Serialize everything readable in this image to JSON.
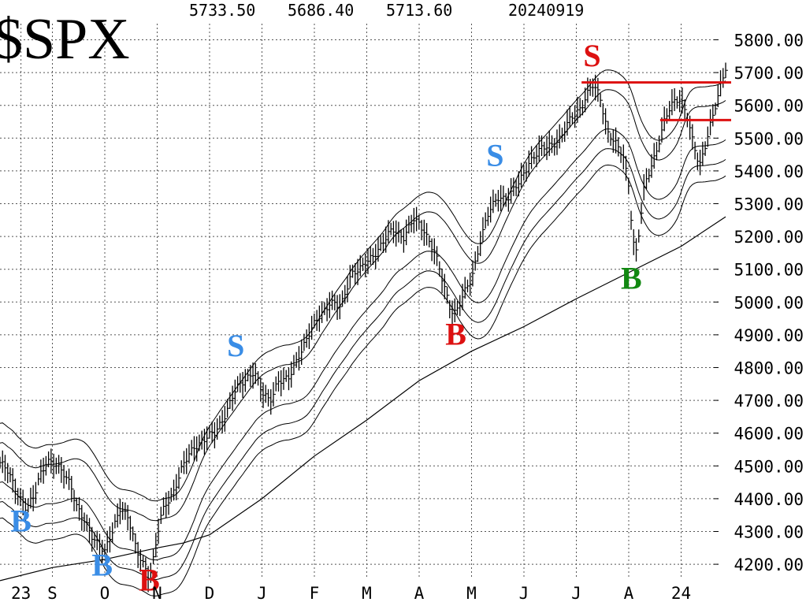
{
  "chart_data": {
    "type": "bar",
    "symbol": "$SPX",
    "header": {
      "high": "5733.50",
      "low": "5686.40",
      "close": "5713.60",
      "date": "20240919"
    },
    "y_ticks": [
      {
        "value": 5800,
        "label": "5800.00"
      },
      {
        "value": 5700,
        "label": "5700.00"
      },
      {
        "value": 5600,
        "label": "5600.00"
      },
      {
        "value": 5500,
        "label": "5500.00"
      },
      {
        "value": 5400,
        "label": "5400.00"
      },
      {
        "value": 5300,
        "label": "5300.00"
      },
      {
        "value": 5200,
        "label": "5200.00"
      },
      {
        "value": 5100,
        "label": "5100.00"
      },
      {
        "value": 5000,
        "label": "5000.00"
      },
      {
        "value": 4900,
        "label": "4900.00"
      },
      {
        "value": 4800,
        "label": "4800.00"
      },
      {
        "value": 4700,
        "label": "4700.00"
      },
      {
        "value": 4600,
        "label": "4600.00"
      },
      {
        "value": 4500,
        "label": "4500.00"
      },
      {
        "value": 4400,
        "label": "4400.00"
      },
      {
        "value": 4300,
        "label": "4300.00"
      },
      {
        "value": 4200,
        "label": "4200.00"
      }
    ],
    "ylim": [
      4170,
      5850
    ],
    "x_ticks": [
      {
        "t": 0.4,
        "label": "23"
      },
      {
        "t": 1.0,
        "label": "S"
      },
      {
        "t": 2.0,
        "label": "O"
      },
      {
        "t": 3.0,
        "label": "N"
      },
      {
        "t": 4.0,
        "label": "D"
      },
      {
        "t": 5.0,
        "label": "J"
      },
      {
        "t": 6.0,
        "label": "F"
      },
      {
        "t": 7.0,
        "label": "M"
      },
      {
        "t": 8.0,
        "label": "A"
      },
      {
        "t": 9.0,
        "label": "M"
      },
      {
        "t": 10.0,
        "label": "J"
      },
      {
        "t": 11.0,
        "label": "J"
      },
      {
        "t": 12.0,
        "label": "A"
      },
      {
        "t": 13.0,
        "label": "24"
      }
    ],
    "grid": true,
    "price_series": [
      [
        0,
        4510
      ],
      [
        0.15,
        4480
      ],
      [
        0.3,
        4430
      ],
      [
        0.5,
        4370
      ],
      [
        0.65,
        4400
      ],
      [
        0.75,
        4470
      ],
      [
        0.9,
        4520
      ],
      [
        1.05,
        4500
      ],
      [
        1.2,
        4480
      ],
      [
        1.35,
        4450
      ],
      [
        1.45,
        4380
      ],
      [
        1.6,
        4330
      ],
      [
        1.75,
        4290
      ],
      [
        1.9,
        4260
      ],
      [
        2.0,
        4235
      ],
      [
        2.15,
        4300
      ],
      [
        2.3,
        4380
      ],
      [
        2.45,
        4340
      ],
      [
        2.6,
        4240
      ],
      [
        2.75,
        4200
      ],
      [
        2.85,
        4160
      ],
      [
        2.95,
        4230
      ],
      [
        3.05,
        4330
      ],
      [
        3.15,
        4380
      ],
      [
        3.3,
        4420
      ],
      [
        3.5,
        4500
      ],
      [
        3.7,
        4560
      ],
      [
        3.9,
        4580
      ],
      [
        4.1,
        4600
      ],
      [
        4.3,
        4660
      ],
      [
        4.5,
        4730
      ],
      [
        4.7,
        4770
      ],
      [
        4.85,
        4790
      ],
      [
        5.0,
        4720
      ],
      [
        5.15,
        4700
      ],
      [
        5.3,
        4760
      ],
      [
        5.5,
        4760
      ],
      [
        5.7,
        4840
      ],
      [
        5.9,
        4900
      ],
      [
        6.1,
        4960
      ],
      [
        6.3,
        5000
      ],
      [
        6.5,
        4980
      ],
      [
        6.7,
        5090
      ],
      [
        6.9,
        5100
      ],
      [
        7.1,
        5140
      ],
      [
        7.3,
        5180
      ],
      [
        7.5,
        5220
      ],
      [
        7.7,
        5200
      ],
      [
        7.9,
        5250
      ],
      [
        8.1,
        5220
      ],
      [
        8.3,
        5150
      ],
      [
        8.45,
        5060
      ],
      [
        8.6,
        4980
      ],
      [
        8.7,
        4970
      ],
      [
        8.85,
        5020
      ],
      [
        9.0,
        5070
      ],
      [
        9.15,
        5180
      ],
      [
        9.3,
        5260
      ],
      [
        9.5,
        5320
      ],
      [
        9.7,
        5320
      ],
      [
        9.9,
        5360
      ],
      [
        10.1,
        5430
      ],
      [
        10.3,
        5460
      ],
      [
        10.5,
        5480
      ],
      [
        10.7,
        5500
      ],
      [
        10.9,
        5560
      ],
      [
        11.1,
        5600
      ],
      [
        11.3,
        5660
      ],
      [
        11.45,
        5630
      ],
      [
        11.6,
        5520
      ],
      [
        11.75,
        5480
      ],
      [
        11.9,
        5440
      ],
      [
        12.0,
        5360
      ],
      [
        12.08,
        5190
      ],
      [
        12.15,
        5150
      ],
      [
        12.3,
        5350
      ],
      [
        12.5,
        5450
      ],
      [
        12.7,
        5560
      ],
      [
        12.9,
        5620
      ],
      [
        13.0,
        5620
      ],
      [
        13.1,
        5580
      ],
      [
        13.2,
        5500
      ],
      [
        13.35,
        5410
      ],
      [
        13.55,
        5540
      ],
      [
        13.7,
        5620
      ],
      [
        13.85,
        5713.6
      ]
    ],
    "moving_average": [
      [
        0,
        4150
      ],
      [
        1,
        4190
      ],
      [
        2,
        4215
      ],
      [
        3,
        4250
      ],
      [
        3.5,
        4265
      ],
      [
        4,
        4290
      ],
      [
        5,
        4400
      ],
      [
        6,
        4530
      ],
      [
        7,
        4640
      ],
      [
        8,
        4760
      ],
      [
        9,
        4850
      ],
      [
        10,
        4925
      ],
      [
        11,
        5010
      ],
      [
        12,
        5090
      ],
      [
        13,
        5170
      ],
      [
        13.85,
        5260
      ]
    ],
    "signals": [
      {
        "label": "B",
        "color": "#3a8de6",
        "t": 0.4,
        "price": 4300
      },
      {
        "label": "B",
        "color": "#3a8de6",
        "t": 1.95,
        "price": 4165
      },
      {
        "label": "B",
        "color": "#dd1111",
        "t": 2.85,
        "price": 4120
      },
      {
        "label": "S",
        "color": "#3a8de6",
        "t": 4.5,
        "price": 4835
      },
      {
        "label": "B",
        "color": "#dd1111",
        "t": 8.7,
        "price": 4870
      },
      {
        "label": "S",
        "color": "#3a8de6",
        "t": 9.45,
        "price": 5415
      },
      {
        "label": "S",
        "color": "#dd1111",
        "t": 11.3,
        "price": 5720
      },
      {
        "label": "B",
        "color": "#118811",
        "t": 12.05,
        "price": 5040
      }
    ],
    "resistance_lines": [
      {
        "price": 5670,
        "t_start": 11.1,
        "t_end": 14.0,
        "color": "#dd1111"
      },
      {
        "price": 5555,
        "t_start": 12.6,
        "t_end": 14.0,
        "color": "#dd1111"
      }
    ]
  }
}
